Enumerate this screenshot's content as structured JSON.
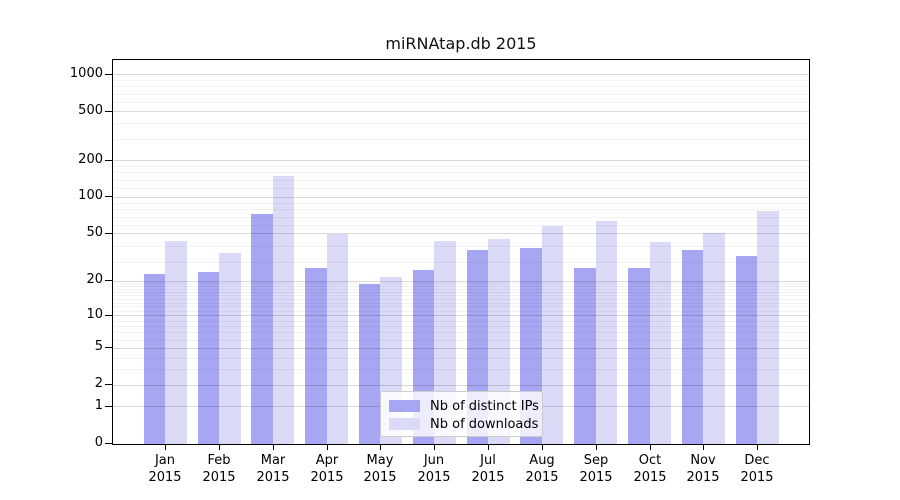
{
  "chart_data": {
    "type": "bar",
    "title": "miRNAtap.db 2015",
    "x": {
      "months": [
        "Jan",
        "Feb",
        "Mar",
        "Apr",
        "May",
        "Jun",
        "Jul",
        "Aug",
        "Sep",
        "Oct",
        "Nov",
        "Dec"
      ],
      "year_label": "2015"
    },
    "series": [
      {
        "name": "Nb of distinct IPs",
        "color": "#a6a6f2",
        "values": [
          23,
          24,
          73,
          26,
          19,
          25,
          37,
          38,
          26,
          26,
          37,
          33
        ]
      },
      {
        "name": "Nb of downloads",
        "color": "#dbdbf8",
        "values": [
          44,
          35,
          150,
          50,
          22,
          44,
          45,
          58,
          64,
          43,
          51,
          77
        ]
      }
    ],
    "y_axis": {
      "scale": "log10(value+1)",
      "tick_labels": [
        0,
        1,
        2,
        5,
        10,
        20,
        50,
        100,
        200,
        500,
        1000
      ]
    },
    "legend_position": "lower center",
    "grid": true
  },
  "colors": {
    "grid_major": "#d6d6d6",
    "grid_minor": "#f2f2f2",
    "spine": "#000000",
    "legend_border": "#cccccc"
  }
}
